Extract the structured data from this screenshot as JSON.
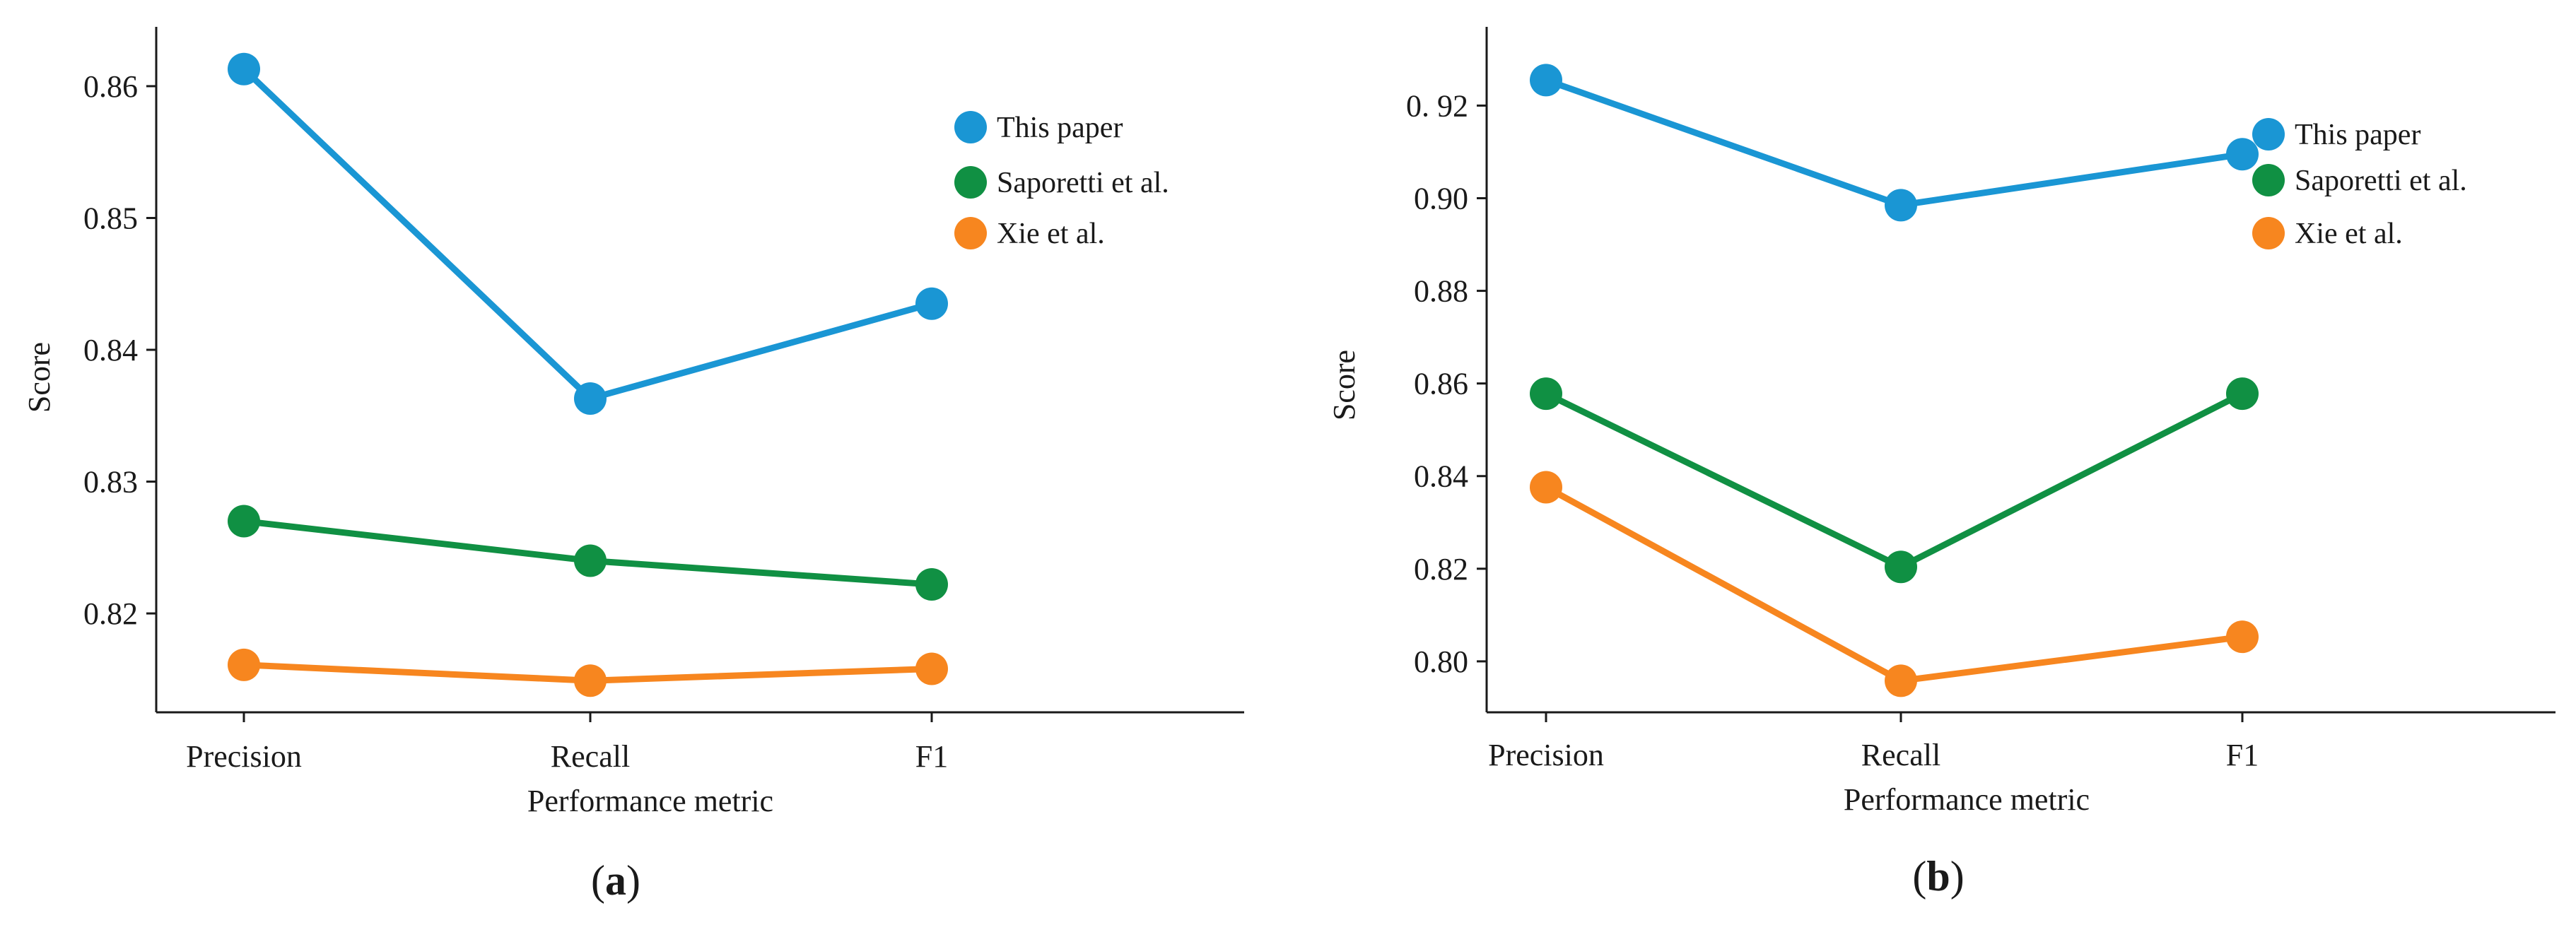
{
  "chart_data": [
    {
      "type": "line",
      "panel_label": "a",
      "xlabel": "Performance metric",
      "ylabel": "Score",
      "categories": [
        "Precision",
        "Recall",
        "F1"
      ],
      "ylim": [
        0.8125,
        0.8645
      ],
      "yticks": [
        0.82,
        0.83,
        0.84,
        0.85,
        0.86
      ],
      "ytick_labels": [
        "0.82",
        "0.83",
        "0.84",
        "0.85",
        "0.86"
      ],
      "legend_position": "top-right",
      "series": [
        {
          "name": "This paper",
          "color": "#1a96d4",
          "values": [
            0.8613,
            0.8363,
            0.8435
          ]
        },
        {
          "name": "Saporetti et al.",
          "color": "#109043",
          "values": [
            0.827,
            0.824,
            0.8222
          ]
        },
        {
          "name": "Xie et al.",
          "color": "#f7861f",
          "values": [
            0.8161,
            0.8149,
            0.8158
          ]
        }
      ]
    },
    {
      "type": "line",
      "panel_label": "b",
      "xlabel": "Performance metric",
      "ylabel": "Score",
      "categories": [
        "Precision",
        "Recall",
        "F1"
      ],
      "ylim": [
        0.789,
        0.937
      ],
      "yticks": [
        0.8,
        0.82,
        0.84,
        0.86,
        0.88,
        0.9,
        0.92
      ],
      "ytick_labels": [
        "0.80",
        "0.82",
        "0.84",
        "0.86",
        "0.88",
        "0.90",
        "0. 92"
      ],
      "legend_position": "top-right",
      "series": [
        {
          "name": "This paper",
          "color": "#1a96d4",
          "values": [
            0.9255,
            0.8985,
            0.9095
          ]
        },
        {
          "name": "Saporetti et al.",
          "color": "#109043",
          "values": [
            0.8578,
            0.8204,
            0.8578
          ]
        },
        {
          "name": "Xie et al.",
          "color": "#f7861f",
          "values": [
            0.8376,
            0.7958,
            0.8053
          ]
        }
      ]
    }
  ]
}
